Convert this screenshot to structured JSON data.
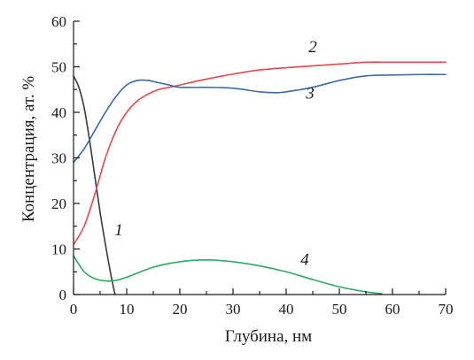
{
  "chart_data": {
    "type": "line",
    "title": "",
    "xlabel": "Глубина, нм",
    "ylabel": "Концентрация, ат. %",
    "xlim": [
      0,
      70
    ],
    "ylim": [
      0,
      60
    ],
    "xticks": [
      "0",
      "10",
      "20",
      "30",
      "40",
      "50",
      "60",
      "70"
    ],
    "yticks": [
      "0",
      "10",
      "20",
      "30",
      "40",
      "50",
      "60"
    ],
    "grid": false,
    "legend": "none",
    "series": [
      {
        "name": "1",
        "color": "#3a3a3a",
        "x": [
          0,
          1,
          2,
          3,
          4,
          5,
          6,
          7,
          7.8
        ],
        "y": [
          48,
          45.5,
          41,
          34,
          26,
          18,
          11,
          4.5,
          0
        ]
      },
      {
        "name": "2",
        "color": "#e8474a",
        "x": [
          0,
          2,
          4,
          6,
          8,
          10,
          12,
          14,
          16,
          18,
          20,
          25,
          30,
          35,
          40,
          45,
          50,
          55,
          60,
          65,
          70
        ],
        "y": [
          11,
          15,
          22,
          30,
          36,
          40,
          42.5,
          44,
          45,
          45.5,
          46,
          47.3,
          48.4,
          49.3,
          49.8,
          50.2,
          50.6,
          51,
          51,
          51,
          51
        ]
      },
      {
        "name": "3",
        "color": "#3b6aa8",
        "x": [
          0,
          2,
          4,
          6,
          8,
          10,
          12,
          14,
          16,
          18,
          20,
          25,
          30,
          35,
          38,
          40,
          45,
          50,
          55,
          60,
          65,
          70
        ],
        "y": [
          29,
          32,
          36,
          40,
          43.5,
          46,
          47,
          47,
          46.5,
          46,
          45.5,
          45.5,
          45.3,
          44.5,
          44.3,
          44.5,
          45.5,
          47,
          48,
          48.2,
          48.3,
          48.3
        ]
      },
      {
        "name": "4",
        "color": "#2fa765",
        "x": [
          0,
          2,
          4,
          6,
          8,
          10,
          15,
          20,
          25,
          30,
          35,
          40,
          45,
          50,
          55,
          58
        ],
        "y": [
          8.5,
          5,
          3.5,
          3,
          3.1,
          3.8,
          6,
          7.2,
          7.6,
          7.2,
          6.3,
          5,
          3.3,
          1.7,
          0.6,
          0.2
        ]
      }
    ],
    "annotations": [
      {
        "text": "1",
        "x": 8.5,
        "y": 13
      },
      {
        "text": "2",
        "x": 45,
        "y": 53.2
      },
      {
        "text": "3",
        "x": 44.5,
        "y": 43
      },
      {
        "text": "4",
        "x": 43.5,
        "y": 6.5
      }
    ]
  }
}
